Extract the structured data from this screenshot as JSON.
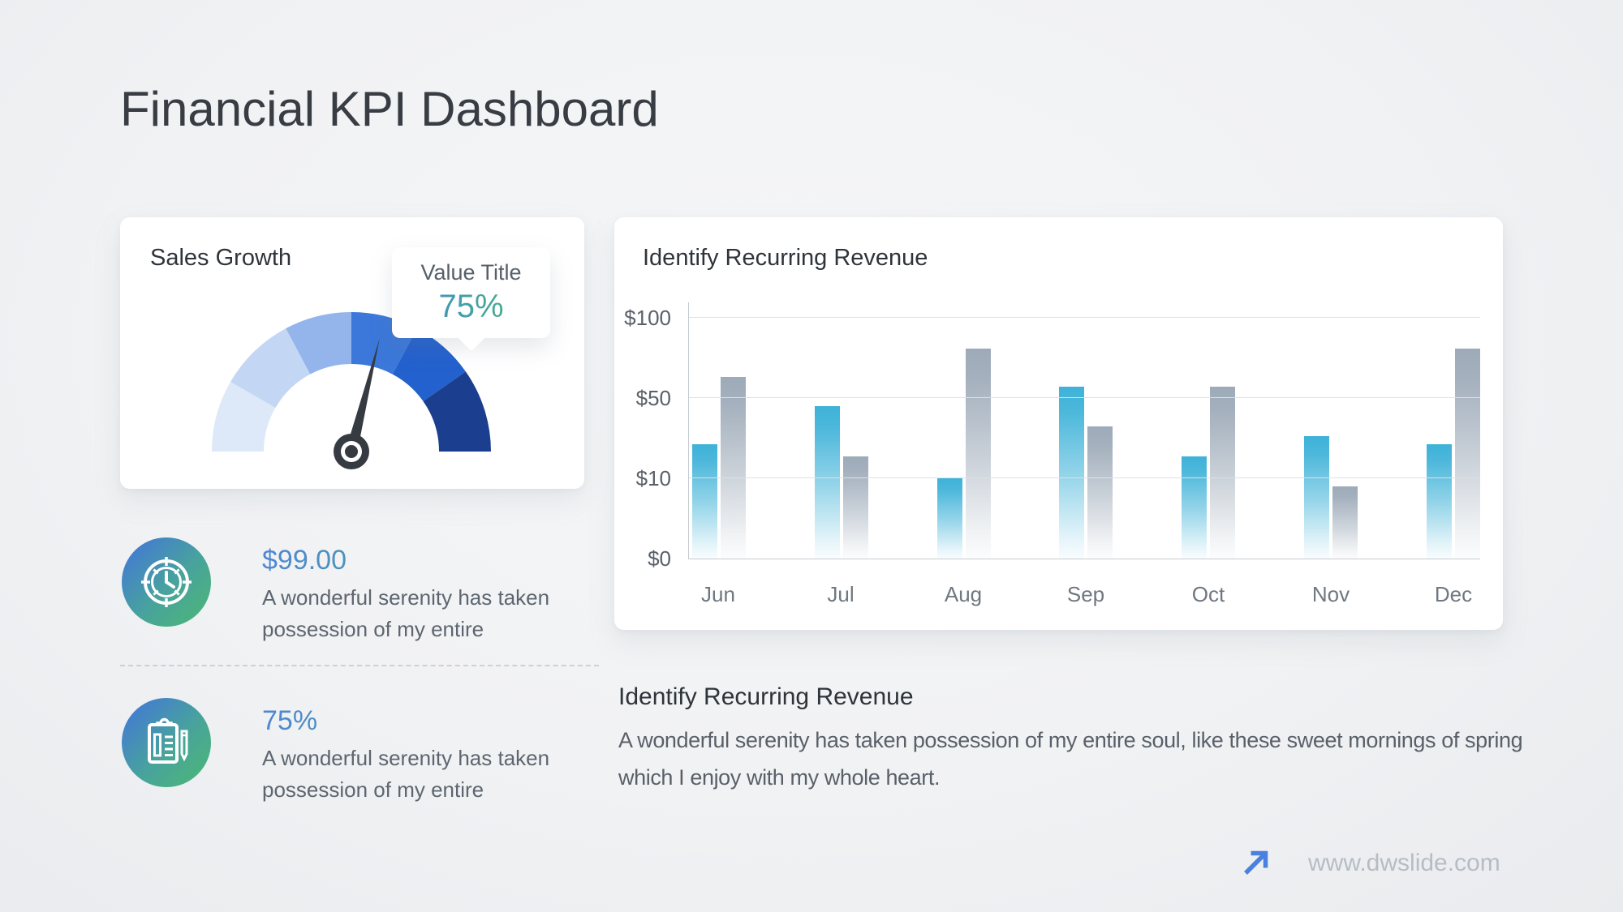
{
  "header": {
    "title": "Financial KPI Dashboard"
  },
  "gauge_card": {
    "title": "Sales Growth",
    "callout": {
      "label": "Value Title",
      "value": "75%"
    }
  },
  "kpi_items": [
    {
      "icon": "clock-icon",
      "value": "$99.00",
      "description": "A wonderful serenity has taken possession of my entire"
    },
    {
      "icon": "clipboard-pencil-icon",
      "value": "75%",
      "description": "A wonderful serenity has taken possession of my entire"
    }
  ],
  "chart_card": {
    "title": "Identify Recurring Revenue"
  },
  "bottom_section": {
    "heading": "Identify Recurring Revenue",
    "body": "A wonderful serenity has taken possession of my entire soul, like these sweet mornings of spring which I enjoy with my whole heart."
  },
  "footer": {
    "website": "www.dwslide.com"
  },
  "colors": {
    "accent_blue": "#4273dd",
    "accent_green": "#4cb972",
    "needle": "#363b42",
    "value_gradient_start": "#4f86d3",
    "value_gradient_end": "#43b878",
    "bar_blue": "#3eb2d8",
    "bar_gray": "#9daab8",
    "arrow_icon": "#4a80df"
  },
  "chart_data": [
    {
      "type": "gauge",
      "title": "Sales Growth",
      "value_label": "75%",
      "value_percent": 75,
      "needle_angle_deg_from_vertical": 14,
      "segments": [
        {
          "from_deg": 0,
          "to_deg": 30,
          "color": "#dde9f8"
        },
        {
          "from_deg": 30,
          "to_deg": 62,
          "color": "#c3d6f3"
        },
        {
          "from_deg": 62,
          "to_deg": 90,
          "color": "#93b5ec"
        },
        {
          "from_deg": 90,
          "to_deg": 118,
          "color": "#3b78da"
        },
        {
          "from_deg": 118,
          "to_deg": 145,
          "color": "#2361ce"
        },
        {
          "from_deg": 145,
          "to_deg": 180,
          "color": "#1b3f8e"
        }
      ]
    },
    {
      "type": "bar",
      "title": "Identify Recurring Revenue",
      "categories": [
        "Jun",
        "Jul",
        "Aug",
        "Sep",
        "Oct",
        "Nov",
        "Dec"
      ],
      "series": [
        {
          "name": "series-blue",
          "color": "#3eb2d8",
          "values": [
            27,
            46,
            10,
            57,
            21,
            31,
            27
          ]
        },
        {
          "name": "series-gray",
          "color": "#9daab8",
          "values": [
            63,
            21,
            81,
            36,
            57,
            9,
            81
          ]
        }
      ],
      "y_ticks": [
        {
          "label": "$0",
          "value": 0
        },
        {
          "label": "$10",
          "value": 10
        },
        {
          "label": "$50",
          "value": 50
        },
        {
          "label": "$100",
          "value": 100
        }
      ],
      "axis_note": "y ticks equally spaced (non-linear scale)",
      "grid": true,
      "legend": false,
      "xlabel": "",
      "ylabel": ""
    }
  ]
}
